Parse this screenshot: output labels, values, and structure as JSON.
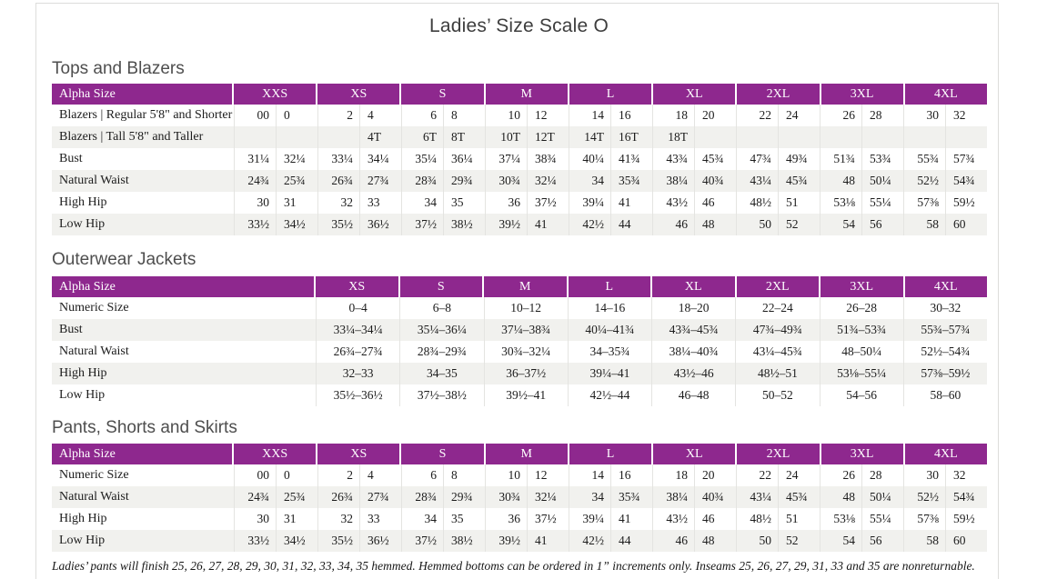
{
  "page": {
    "title": "Ladies’ Size Scale O",
    "footnote": "Ladies’ pants will finish 25, 26, 27, 28, 29, 30, 31, 32, 33, 34, 35 hemmed. Hemmed bottoms can be ordered in 1” increments only. Inseams 25, 26, 27, 29, 31, 33 and 35 are nonreturnable."
  },
  "colors": {
    "header_purple": "#8e288e",
    "stripe_gray": "#f1f1ee",
    "border_gray": "#dddddb"
  },
  "tables": [
    {
      "section_title": "Tops and Blazers",
      "header_label": "Alpha Size",
      "column_type": "pair",
      "columns": [
        "XXS",
        "XS",
        "S",
        "M",
        "L",
        "XL",
        "2XL",
        "3XL",
        "4XL"
      ],
      "rows": [
        {
          "label": "Blazers  |  Regular 5'8\" and Shorter",
          "cells": [
            [
              "00",
              "0"
            ],
            [
              "2",
              "4"
            ],
            [
              "6",
              "8"
            ],
            [
              "10",
              "12"
            ],
            [
              "14",
              "16"
            ],
            [
              "18",
              "20"
            ],
            [
              "22",
              "24"
            ],
            [
              "26",
              "28"
            ],
            [
              "30",
              "32"
            ]
          ]
        },
        {
          "label": "Blazers  |  Tall 5'8\" and Taller",
          "cells": [
            [
              "",
              ""
            ],
            [
              "",
              "4T"
            ],
            [
              "6T",
              "8T"
            ],
            [
              "10T",
              "12T"
            ],
            [
              "14T",
              "16T"
            ],
            [
              "18T",
              ""
            ],
            [
              "",
              ""
            ],
            [
              "",
              ""
            ],
            [
              "",
              ""
            ]
          ]
        },
        {
          "label": "Bust",
          "cells": [
            [
              "31¼",
              "32¼"
            ],
            [
              "33¼",
              "34¼"
            ],
            [
              "35¼",
              "36¼"
            ],
            [
              "37¼",
              "38¾"
            ],
            [
              "40¼",
              "41¾"
            ],
            [
              "43¾",
              "45¾"
            ],
            [
              "47¾",
              "49¾"
            ],
            [
              "51¾",
              "53¾"
            ],
            [
              "55¾",
              "57¾"
            ]
          ]
        },
        {
          "label": "Natural Waist",
          "cells": [
            [
              "24¾",
              "25¾"
            ],
            [
              "26¾",
              "27¾"
            ],
            [
              "28¾",
              "29¾"
            ],
            [
              "30¾",
              "32¼"
            ],
            [
              "34",
              "35¾"
            ],
            [
              "38¼",
              "40¾"
            ],
            [
              "43¼",
              "45¾"
            ],
            [
              "48",
              "50¼"
            ],
            [
              "52½",
              "54¾"
            ]
          ]
        },
        {
          "label": "High Hip",
          "cells": [
            [
              "30",
              "31"
            ],
            [
              "32",
              "33"
            ],
            [
              "34",
              "35"
            ],
            [
              "36",
              "37½"
            ],
            [
              "39¼",
              "41"
            ],
            [
              "43½",
              "46"
            ],
            [
              "48½",
              "51"
            ],
            [
              "53⅛",
              "55¼"
            ],
            [
              "57⅜",
              "59½"
            ]
          ]
        },
        {
          "label": "Low Hip",
          "cells": [
            [
              "33½",
              "34½"
            ],
            [
              "35½",
              "36½"
            ],
            [
              "37½",
              "38½"
            ],
            [
              "39½",
              "41"
            ],
            [
              "42½",
              "44"
            ],
            [
              "46",
              "48"
            ],
            [
              "50",
              "52"
            ],
            [
              "54",
              "56"
            ],
            [
              "58",
              "60"
            ]
          ]
        }
      ]
    },
    {
      "section_title": "Outerwear Jackets",
      "header_label": "Alpha Size",
      "column_type": "single",
      "columns": [
        "XS",
        "S",
        "M",
        "L",
        "XL",
        "2XL",
        "3XL",
        "4XL"
      ],
      "rows": [
        {
          "label": "Numeric Size",
          "cells": [
            "0–4",
            "6–8",
            "10–12",
            "14–16",
            "18–20",
            "22–24",
            "26–28",
            "30–32"
          ]
        },
        {
          "label": "Bust",
          "cells": [
            "33¼–34¼",
            "35¼–36¼",
            "37¼–38¾",
            "40¼–41¾",
            "43¾–45¾",
            "47¾–49¾",
            "51¾–53¾",
            "55¾–57¾"
          ]
        },
        {
          "label": "Natural Waist",
          "cells": [
            "26¾–27¾",
            "28¾–29¾",
            "30¾–32¼",
            "34–35¾",
            "38¼–40¾",
            "43¼–45¾",
            "48–50¼",
            "52½–54¾"
          ]
        },
        {
          "label": "High Hip",
          "cells": [
            "32–33",
            "34–35",
            "36–37½",
            "39¼–41",
            "43½–46",
            "48½–51",
            "53⅛–55¼",
            "57⅜–59½"
          ]
        },
        {
          "label": "Low Hip",
          "cells": [
            "35½–36½",
            "37½–38½",
            "39½–41",
            "42½–44",
            "46–48",
            "50–52",
            "54–56",
            "58–60"
          ]
        }
      ]
    },
    {
      "section_title": "Pants, Shorts and Skirts",
      "header_label": "Alpha Size",
      "column_type": "pair",
      "columns": [
        "XXS",
        "XS",
        "S",
        "M",
        "L",
        "XL",
        "2XL",
        "3XL",
        "4XL"
      ],
      "rows": [
        {
          "label": "Numeric Size",
          "cells": [
            [
              "00",
              "0"
            ],
            [
              "2",
              "4"
            ],
            [
              "6",
              "8"
            ],
            [
              "10",
              "12"
            ],
            [
              "14",
              "16"
            ],
            [
              "18",
              "20"
            ],
            [
              "22",
              "24"
            ],
            [
              "26",
              "28"
            ],
            [
              "30",
              "32"
            ]
          ]
        },
        {
          "label": "Natural Waist",
          "cells": [
            [
              "24¾",
              "25¾"
            ],
            [
              "26¾",
              "27¾"
            ],
            [
              "28¾",
              "29¾"
            ],
            [
              "30¾",
              "32¼"
            ],
            [
              "34",
              "35¾"
            ],
            [
              "38¼",
              "40¾"
            ],
            [
              "43¼",
              "45¾"
            ],
            [
              "48",
              "50¼"
            ],
            [
              "52½",
              "54¾"
            ]
          ]
        },
        {
          "label": "High Hip",
          "cells": [
            [
              "30",
              "31"
            ],
            [
              "32",
              "33"
            ],
            [
              "34",
              "35"
            ],
            [
              "36",
              "37½"
            ],
            [
              "39¼",
              "41"
            ],
            [
              "43½",
              "46"
            ],
            [
              "48½",
              "51"
            ],
            [
              "53⅛",
              "55¼"
            ],
            [
              "57⅜",
              "59½"
            ]
          ]
        },
        {
          "label": "Low Hip",
          "cells": [
            [
              "33½",
              "34½"
            ],
            [
              "35½",
              "36½"
            ],
            [
              "37½",
              "38½"
            ],
            [
              "39½",
              "41"
            ],
            [
              "42½",
              "44"
            ],
            [
              "46",
              "48"
            ],
            [
              "50",
              "52"
            ],
            [
              "54",
              "56"
            ],
            [
              "58",
              "60"
            ]
          ]
        }
      ]
    }
  ]
}
